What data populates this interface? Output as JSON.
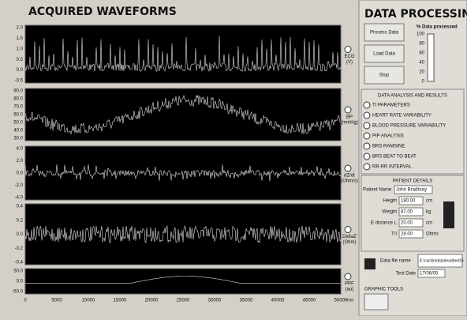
{
  "left": {
    "title": "ACQUIRED WAVEFORMS",
    "plots": [
      {
        "label": "ECG",
        "unit": "(V)",
        "yticks": [
          "2.0",
          "1.5",
          "1.0",
          "0.5",
          "0.0",
          "-0.5"
        ]
      },
      {
        "label": "BP",
        "unit": "(mmHg)",
        "yticks": [
          "90.0",
          "80.0",
          "70.0",
          "60.0",
          "50.0",
          "40.0",
          "30.0"
        ]
      },
      {
        "label": "dZ/dt",
        "unit": "(Ohm/s)",
        "yticks": [
          "4.0",
          "2.0",
          "0.0",
          "-2.0",
          "-4.0"
        ]
      },
      {
        "label": "DeltaZ",
        "unit": "(Ohm)",
        "yticks": [
          "0.4",
          "0.2",
          "0.0",
          "-0.2",
          "-0.4"
        ]
      },
      {
        "label": "PPF",
        "unit": "(au)",
        "yticks": [
          "50.0",
          "0.0",
          "-50.0"
        ]
      }
    ],
    "xticks": [
      "0",
      "5000",
      "10000",
      "15000",
      "20000",
      "25000",
      "30000",
      "35000",
      "40000",
      "45000",
      "50000"
    ],
    "xunit": "ms"
  },
  "right": {
    "title": "DATA PROCESSING",
    "buttons": [
      "Process Data",
      "Load Data",
      "Stop"
    ],
    "progress": {
      "label": "% Data processed",
      "scale": [
        "100",
        "80",
        "60",
        "40",
        "20",
        "0"
      ]
    },
    "results": {
      "header": "DATA ANALYSIS AND RESULTS",
      "items": [
        "TI PARAMETERS",
        "HEART RATE VARIABILITY",
        "BLOOD PRESSURE VARIABILITY",
        "PIP ANALYSIS",
        "BRS RAMSINE",
        "BRS BEAT TO BEAT",
        "RR-RR INTERVAL"
      ]
    },
    "patient": {
      "header": "PATIENT DETAILS",
      "name_label": "Patient Name",
      "name": "John Bradbury",
      "fields": [
        {
          "label": "Height",
          "value": "180.00",
          "unit": "cm"
        },
        {
          "label": "Weight",
          "value": "87.00",
          "unit": "kg"
        },
        {
          "label": "E distance L",
          "value": "20.00",
          "unit": "cm"
        },
        {
          "label": "T/I",
          "value": "28.00",
          "unit": "Ohms"
        }
      ]
    },
    "file": {
      "label": "Data file name",
      "path": "E:\\cardio\\data\\leadbed16",
      "date_label": "Test Date",
      "date": "17/06/05"
    },
    "tools": "GRAPHIC TOOLS"
  }
}
